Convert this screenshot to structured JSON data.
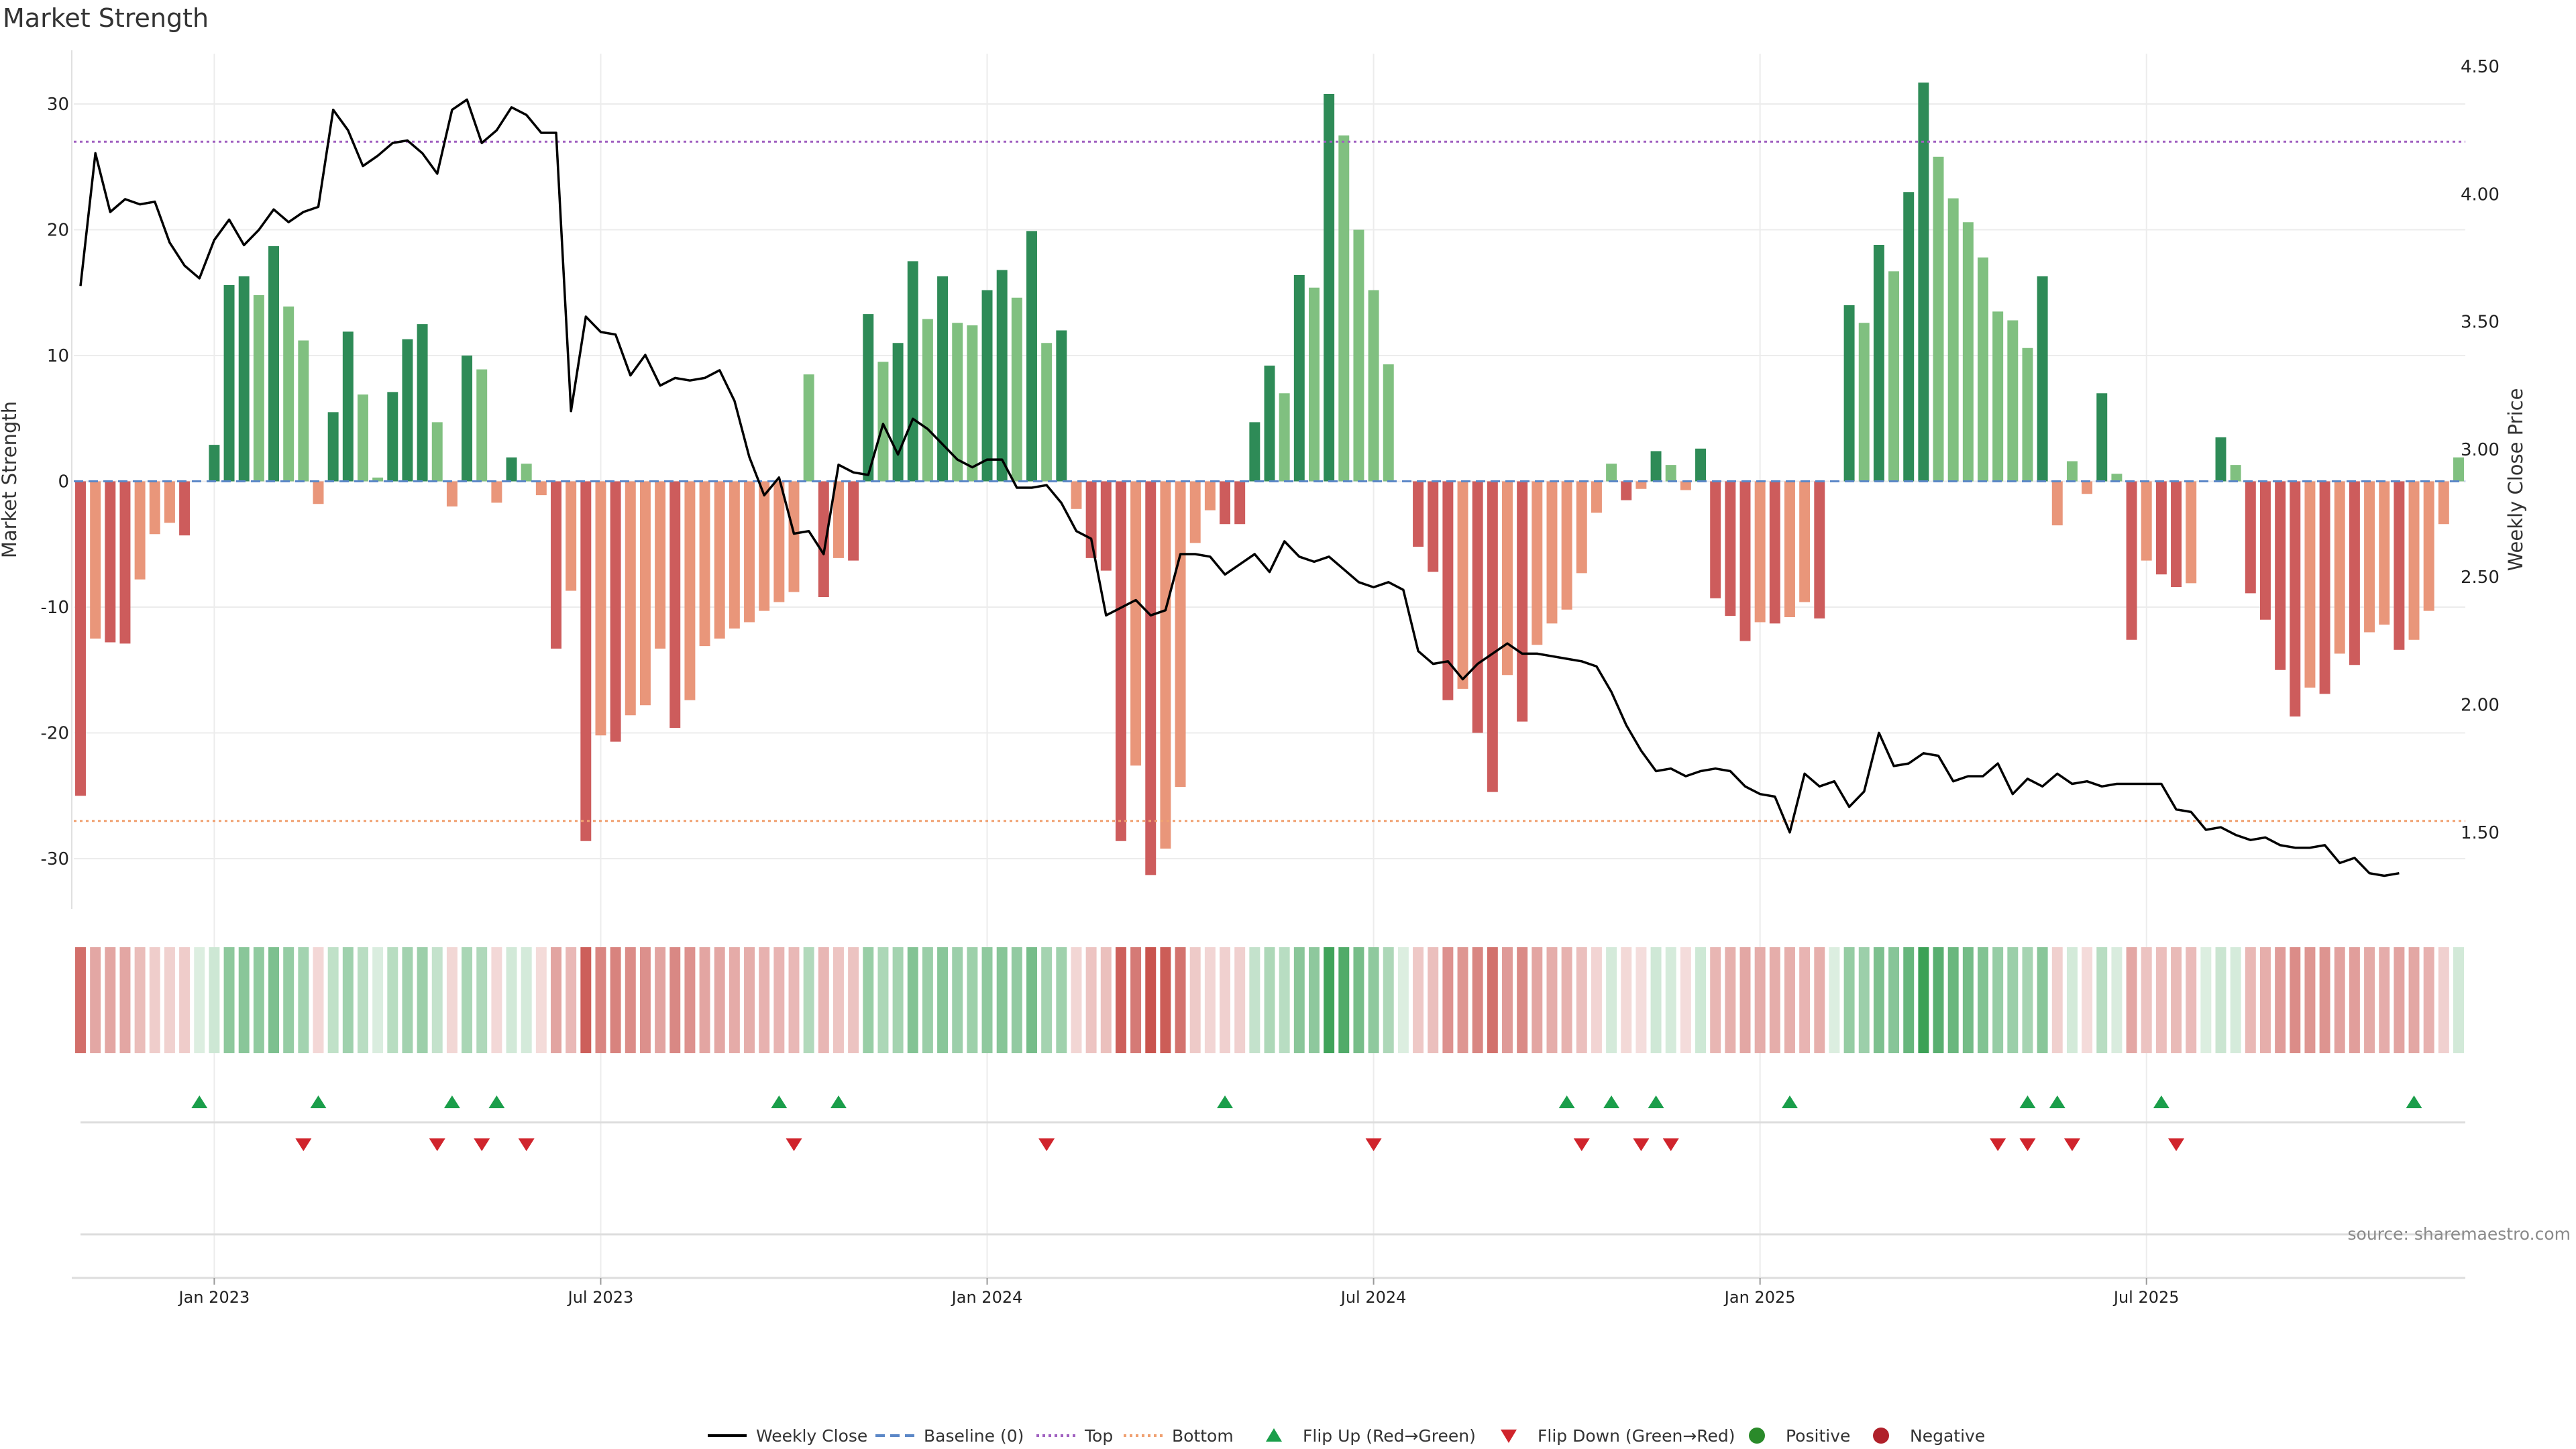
{
  "chart_data": {
    "type": "bar",
    "title": "Market Strength",
    "ylabel": "Market Strength",
    "y2label": "Weekly Close Price",
    "ylim": [
      -34,
      34
    ],
    "y2lim": [
      1.2,
      4.55
    ],
    "y_ticks": [
      30,
      20,
      10,
      0,
      -10,
      -20,
      -30
    ],
    "y_tick_labels": [
      "30",
      "20",
      "10",
      "0",
      "-10",
      "-20",
      "-30"
    ],
    "y2_ticks": [
      4.5,
      4.0,
      3.5,
      3.0,
      2.5,
      2.0,
      1.5
    ],
    "y2_tick_labels": [
      "4.50",
      "4.00",
      "3.50",
      "3.00",
      "2.50",
      "2.00",
      "1.50"
    ],
    "x_ticks": [
      {
        "index": 9,
        "label": "Jan 2023"
      },
      {
        "index": 35,
        "label": "Jul 2023"
      },
      {
        "index": 61,
        "label": "Jan 2024"
      },
      {
        "index": 87,
        "label": "Jul 2024"
      },
      {
        "index": 113,
        "label": "Jan 2025"
      },
      {
        "index": 139,
        "label": "Jul 2025"
      }
    ],
    "top_level": 27,
    "bottom_level": -27,
    "grid": true,
    "legend_position": "bottom-center",
    "source": "source: sharemaestro.com",
    "strength": [
      -25,
      -12.5,
      -12.8,
      -12.9,
      -7.8,
      -4.2,
      -3.3,
      -4.3,
      0,
      2.9,
      15.6,
      16.3,
      14.8,
      18.7,
      13.9,
      11.2,
      -1.8,
      5.5,
      11.9,
      6.9,
      0.3,
      7.1,
      11.3,
      12.5,
      4.7,
      -2,
      10,
      8.9,
      -1.7,
      1.9,
      1.4,
      -1.1,
      -13.3,
      -8.7,
      -28.6,
      -20.2,
      -20.7,
      -18.6,
      -17.8,
      -13.3,
      -19.6,
      -17.4,
      -13.1,
      -12.5,
      -11.7,
      -11.2,
      -10.3,
      -9.6,
      -8.8,
      8.5,
      -9.2,
      -6.1,
      -6.3,
      13.3,
      9.5,
      11,
      17.5,
      12.9,
      16.3,
      12.6,
      12.4,
      15.2,
      16.8,
      14.6,
      19.9,
      11,
      12,
      -2.2,
      -6.1,
      -7.1,
      -28.6,
      -22.6,
      -31.3,
      -29.2,
      -24.3,
      -4.9,
      -2.3,
      -3.4,
      -3.4,
      4.7,
      9.2,
      7,
      16.4,
      15.4,
      30.8,
      27.5,
      20,
      15.2,
      9.3,
      0,
      -5.2,
      -7.2,
      -17.4,
      -16.5,
      -20,
      -24.7,
      -15.4,
      -19.1,
      -13,
      -11.3,
      -10.2,
      -7.3,
      -2.5,
      1.4,
      -1.5,
      -0.6,
      2.4,
      1.3,
      -0.7,
      2.6,
      -9.3,
      -10.7,
      -12.7,
      -11.2,
      -11.3,
      -10.8,
      -9.6,
      -10.9,
      0,
      14,
      12.6,
      18.8,
      16.7,
      23,
      31.7,
      25.8,
      22.5,
      20.6,
      17.8,
      13.5,
      12.8,
      10.6,
      16.3,
      -3.5,
      1.6,
      -1,
      7,
      0.6,
      -12.6,
      -6.3,
      -7.4,
      -8.4,
      -8.1,
      0,
      3.5,
      1.3,
      -8.9,
      -11,
      -15,
      -18.7,
      -16.4,
      -16.9,
      -13.7,
      -14.6,
      -12,
      -11.4,
      -13.4,
      -12.6,
      -10.3,
      -3.4,
      1.9
    ],
    "weekly_close": [
      3.64,
      4.16,
      3.93,
      3.98,
      3.96,
      3.97,
      3.81,
      3.72,
      3.67,
      3.82,
      3.9,
      3.8,
      3.86,
      3.94,
      3.89,
      3.93,
      3.95,
      4.33,
      4.25,
      4.11,
      4.15,
      4.2,
      4.21,
      4.16,
      4.08,
      4.33,
      4.37,
      4.2,
      4.25,
      4.34,
      4.31,
      4.24,
      4.24,
      3.15,
      3.52,
      3.46,
      3.45,
      3.29,
      3.37,
      3.25,
      3.28,
      3.27,
      3.28,
      3.31,
      3.19,
      2.97,
      2.82,
      2.89,
      2.67,
      2.68,
      2.59,
      2.94,
      2.91,
      2.9,
      3.1,
      2.98,
      3.12,
      3.08,
      3.02,
      2.96,
      2.93,
      2.96,
      2.96,
      2.85,
      2.85,
      2.86,
      2.79,
      2.68,
      2.65,
      2.35,
      2.38,
      2.41,
      2.35,
      2.37,
      2.59,
      2.59,
      2.58,
      2.51,
      2.55,
      2.59,
      2.52,
      2.64,
      2.58,
      2.56,
      2.58,
      2.53,
      2.48,
      2.46,
      2.48,
      2.45,
      2.21,
      2.16,
      2.17,
      2.1,
      2.16,
      2.2,
      2.24,
      2.2,
      2.2,
      2.19,
      2.18,
      2.17,
      2.15,
      2.05,
      1.92,
      1.82,
      1.74,
      1.75,
      1.72,
      1.74,
      1.75,
      1.74,
      1.68,
      1.65,
      1.64,
      1.5,
      1.73,
      1.68,
      1.7,
      1.6,
      1.66,
      1.89,
      1.76,
      1.77,
      1.81,
      1.8,
      1.7,
      1.72,
      1.72,
      1.77,
      1.65,
      1.71,
      1.68,
      1.73,
      1.69,
      1.7,
      1.68,
      1.69,
      1.69,
      1.69,
      1.69,
      1.59,
      1.58,
      1.51,
      1.52,
      1.49,
      1.47,
      1.48,
      1.45,
      1.44,
      1.44,
      1.45,
      1.38,
      1.4,
      1.34,
      1.33,
      1.34
    ],
    "flip_up_index": [
      8,
      16,
      25,
      28,
      47,
      51,
      77,
      100,
      103,
      106,
      115,
      131,
      133,
      140,
      157
    ],
    "flip_down_index": [
      15,
      24,
      27,
      30,
      48,
      65,
      87,
      101,
      105,
      107,
      129,
      131,
      134,
      141
    ],
    "legend": [
      {
        "key": "weekly",
        "label": "Weekly Close"
      },
      {
        "key": "baseline",
        "label": "Baseline (0)"
      },
      {
        "key": "top",
        "label": "Top"
      },
      {
        "key": "bottom",
        "label": "Bottom"
      },
      {
        "key": "flipup",
        "label": "Flip Up (Red→Green)"
      },
      {
        "key": "flipdown",
        "label": "Flip Down (Green→Red)"
      },
      {
        "key": "positive",
        "label": "Positive"
      },
      {
        "key": "negative",
        "label": "Negative"
      }
    ]
  },
  "colors": {
    "pos_strong": "#2e8b57",
    "pos_light": "#80c080",
    "neg_strong": "#cd5c5c",
    "neg_light": "#e9967a",
    "price_line": "#000000",
    "baseline": "#5b87c7",
    "top": "#a060c0",
    "bottom": "#f0a070",
    "flip_up": "#1a9e4a",
    "flip_down": "#d0242c",
    "positive_dot": "#2a8a2a",
    "negative_dot": "#b0202a"
  }
}
